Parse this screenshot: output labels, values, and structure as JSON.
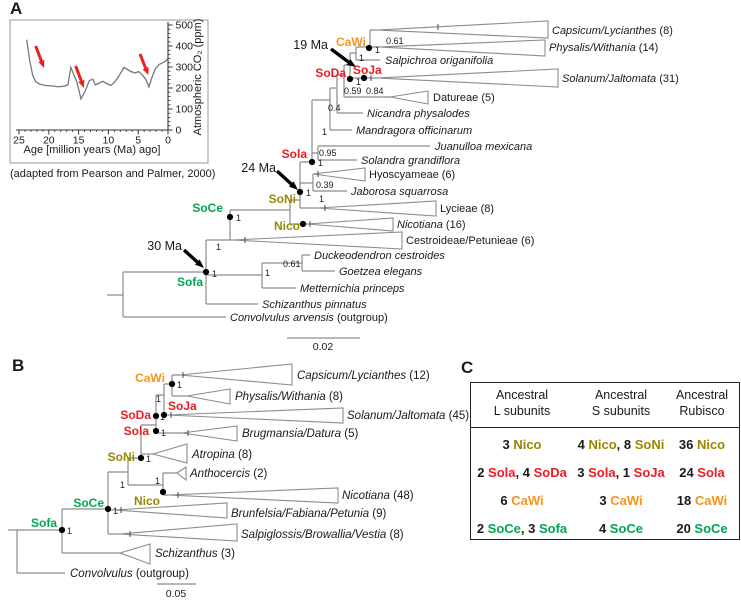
{
  "colors": {
    "black": "#1a1a1a",
    "red": "#EC1B23",
    "orange": "#F7941D",
    "olive": "#9A8700",
    "green": "#00A651",
    "tree_line": "#8c8c8c",
    "arrow_red": "#E8211D"
  },
  "panelA": {
    "label": "A",
    "ages": [
      "19 Ma",
      "24 Ma",
      "30 Ma"
    ],
    "nodes": {
      "cawi": "CaWi",
      "soda": "SoDa",
      "soja": "SoJa",
      "sola": "Sola",
      "soni": "SoNi",
      "soce": "SoCe",
      "nico": "Nico",
      "sofa": "Sofa"
    },
    "supports": {
      "cap_phy": "0.61",
      "cawi": "1",
      "salp": "1",
      "soda": "1",
      "dat1": "0.59",
      "dat2": "0.84",
      "nicandra": "0.4",
      "mandragora": "1",
      "jua_sol": "0.95",
      "sola": "1",
      "hyo_jab": "0.39",
      "jab": "1",
      "soni": "1",
      "soce": "1",
      "ces": "1",
      "duc_goe": "0.61",
      "dgm": "1",
      "sofa": "1"
    },
    "tips": [
      {
        "name": "Capsicum/Lycianthes",
        "count": " (8)"
      },
      {
        "name": "Physalis/Withania",
        "count": " (14)"
      },
      {
        "name": "Salpichroa origanifolia",
        "count": ""
      },
      {
        "name": "Solanum/Jaltomata",
        "count": " (31)"
      },
      {
        "name": "Datureae",
        "count": " (5)"
      },
      {
        "name": "Nicandra physalodes",
        "count": ""
      },
      {
        "name": "Mandragora officinarum",
        "count": ""
      },
      {
        "name": "Juanulloa mexicana",
        "count": ""
      },
      {
        "name": "Solandra grandiflora",
        "count": ""
      },
      {
        "name": "Hyoscyameae",
        "count": " (6)"
      },
      {
        "name": "Jaborosa squarrosa",
        "count": ""
      },
      {
        "name": "Lycieae",
        "count": " (8)"
      },
      {
        "name": "Nicotiana",
        "count": " (16)"
      },
      {
        "name": "Cestroideae/Petunieae",
        "count": " (6)"
      },
      {
        "name": "Duckeodendron cestroides",
        "count": ""
      },
      {
        "name": "Goetzea elegans",
        "count": ""
      },
      {
        "name": "Metternichia princeps",
        "count": ""
      },
      {
        "name": "Schizanthus pinnatus",
        "count": ""
      },
      {
        "name": "Convolvulus arvensis",
        "count": " (outgroup)"
      }
    ],
    "scale": "0.02"
  },
  "panelB": {
    "label": "B",
    "nodes": {
      "cawi": "CaWi",
      "soda": "SoDa",
      "soja": "SoJa",
      "sola": "Sola",
      "soni": "SoNi",
      "soce": "SoCe",
      "nico": "Nico",
      "sofa": "Sofa"
    },
    "supports": {
      "cawi": "1",
      "b2": "1",
      "soda": "1",
      "sola": "1",
      "soni": "1",
      "b5": "1",
      "anth": "1",
      "soce": "1",
      "sofa": "1"
    },
    "tips": [
      {
        "name": "Capsicum/Lycianthes",
        "count": " (12)"
      },
      {
        "name": "Physalis/Withania",
        "count": " (8)"
      },
      {
        "name": "Solanum/Jaltomata",
        "count": " (45)"
      },
      {
        "name": "Brugmansia/Datura",
        "count": " (5)"
      },
      {
        "name": "Atropina",
        "count": " (8)"
      },
      {
        "name": "Anthocercis",
        "count": " (2)"
      },
      {
        "name": "Nicotiana",
        "count": " (48)"
      },
      {
        "name": "Brunfelsia/Fabiana/Petunia",
        "count": " (9)"
      },
      {
        "name": "Salpiglossis/Browallia/Vestia",
        "count": " (8)"
      },
      {
        "name": "Schizanthus",
        "count": " (3)"
      },
      {
        "name": "Convolvulus",
        "count": " (outgroup)"
      }
    ],
    "scale": "0.05"
  },
  "panelC": {
    "label": "C",
    "headers": [
      {
        "line1": "Ancestral",
        "line2": "L subunits"
      },
      {
        "line1": "Ancestral",
        "line2": "S subunits"
      },
      {
        "line1": "Ancestral",
        "line2": "Rubisco"
      }
    ],
    "rows": [
      [
        [
          {
            "t": "3 "
          },
          {
            "t": "Nico",
            "c": "olive"
          }
        ],
        [
          {
            "t": "4 "
          },
          {
            "t": "Nico",
            "c": "olive"
          },
          {
            "t": ", 8 "
          },
          {
            "t": "SoNi",
            "c": "olive"
          }
        ],
        [
          {
            "t": "36 "
          },
          {
            "t": "Nico",
            "c": "olive"
          }
        ]
      ],
      [
        [
          {
            "t": "2 "
          },
          {
            "t": "Sola",
            "c": "red"
          },
          {
            "t": ", 4 "
          },
          {
            "t": "SoDa",
            "c": "red"
          }
        ],
        [
          {
            "t": "3 "
          },
          {
            "t": "Sola",
            "c": "red"
          },
          {
            "t": ", 1 "
          },
          {
            "t": "SoJa",
            "c": "red"
          }
        ],
        [
          {
            "t": "24 "
          },
          {
            "t": "Sola",
            "c": "red"
          }
        ]
      ],
      [
        [
          {
            "t": "6 "
          },
          {
            "t": "CaWi",
            "c": "orange"
          }
        ],
        [
          {
            "t": "3 "
          },
          {
            "t": "CaWi",
            "c": "orange"
          }
        ],
        [
          {
            "t": "18 "
          },
          {
            "t": "CaWi",
            "c": "orange"
          }
        ]
      ],
      [
        [
          {
            "t": "2 "
          },
          {
            "t": "SoCe",
            "c": "green"
          },
          {
            "t": ", 3 "
          },
          {
            "t": "Sofa",
            "c": "green"
          }
        ],
        [
          {
            "t": "4 "
          },
          {
            "t": "SoCe",
            "c": "green"
          }
        ],
        [
          {
            "t": "20 "
          },
          {
            "t": "SoCe",
            "c": "green"
          }
        ]
      ]
    ]
  },
  "chart_data": {
    "type": "line",
    "title": "",
    "xlabel": "Age [million years (Ma) ago]",
    "ylabel": "Atmospheric CO₂ (ppm)",
    "x_ticks": [
      25,
      20,
      15,
      10,
      5,
      0
    ],
    "y_ticks": [
      0,
      100,
      200,
      300,
      400,
      500
    ],
    "xlim": [
      25,
      0
    ],
    "ylim": [
      0,
      500
    ],
    "x_axis_reversed": true,
    "grid": false,
    "source_note": "(adapted from Pearson and Palmer, 2000)",
    "series": [
      {
        "name": "Atmospheric CO2 (ppm)",
        "x": [
          23.7,
          23.2,
          22.7,
          22.2,
          21.5,
          20.5,
          19.5,
          18.5,
          17.5,
          16.8,
          16.3,
          15.8,
          15.3,
          14.6,
          13.9,
          13.2,
          12.6,
          12.2,
          11.6,
          11.0,
          10.3,
          9.6,
          8.9,
          8.2,
          7.4,
          6.8,
          6.2,
          5.5,
          4.9,
          4.3,
          3.7,
          3.2,
          2.7,
          2.1,
          1.5,
          0.9,
          0.4,
          0.0
        ],
        "y": [
          430,
          330,
          260,
          230,
          218,
          212,
          210,
          206,
          208,
          215,
          298,
          262,
          230,
          148,
          185,
          235,
          242,
          215,
          222,
          232,
          222,
          212,
          230,
          258,
          298,
          288,
          278,
          272,
          278,
          262,
          240,
          205,
          250,
          292,
          312,
          320,
          328,
          342
        ]
      }
    ],
    "annotations": [
      {
        "type": "arrow",
        "color": "#E8211D",
        "from_age": 22.2,
        "from_ppm": 400,
        "to_age": 20.8,
        "to_ppm": 295
      },
      {
        "type": "arrow",
        "color": "#E8211D",
        "from_age": 15.5,
        "from_ppm": 305,
        "to_age": 14.1,
        "to_ppm": 200
      },
      {
        "type": "arrow",
        "color": "#E8211D",
        "from_age": 4.7,
        "from_ppm": 362,
        "to_age": 3.3,
        "to_ppm": 262
      }
    ]
  }
}
